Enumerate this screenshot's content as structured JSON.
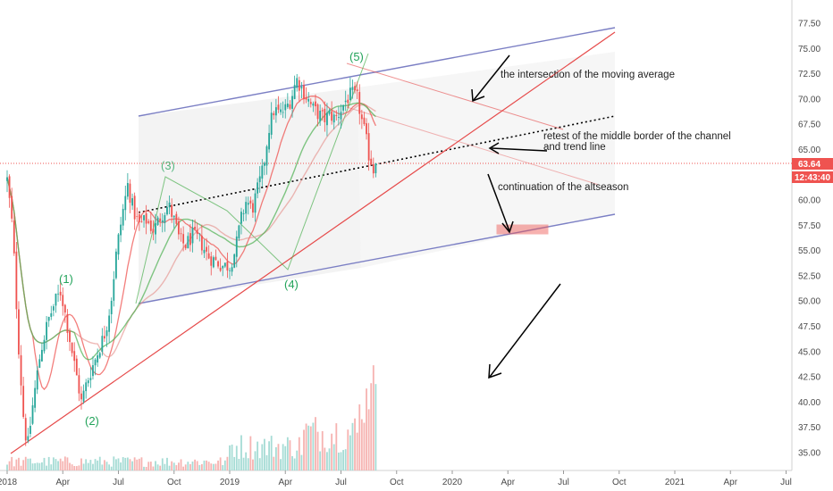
{
  "chart_data": {
    "type": "candlestick",
    "y_axis": {
      "ticks": [
        "35.00",
        "37.50",
        "40.00",
        "42.50",
        "45.00",
        "47.50",
        "50.00",
        "52.50",
        "55.00",
        "57.50",
        "60.00",
        "62.50",
        "65.00",
        "67.50",
        "70.00",
        "72.50",
        "75.00",
        "77.50"
      ],
      "ylim": [
        33.5,
        79
      ]
    },
    "x_axis": {
      "ticks": [
        "2018",
        "Apr",
        "Jul",
        "Oct",
        "2019",
        "Apr",
        "Jul",
        "Oct",
        "2020",
        "Apr",
        "Jul",
        "Oct",
        "2021",
        "Apr",
        "Jul"
      ]
    },
    "last_price": 63.64,
    "last_price_label": "63.64",
    "countdown_label": "12:43:40",
    "price_keypoints": [
      [
        0,
        62
      ],
      [
        0.3,
        57
      ],
      [
        0.6,
        46
      ],
      [
        0.9,
        38
      ],
      [
        1.1,
        35.5
      ],
      [
        1.4,
        40
      ],
      [
        1.8,
        45
      ],
      [
        2.2,
        48
      ],
      [
        2.6,
        50
      ],
      [
        2.9,
        51
      ],
      [
        3.3,
        47
      ],
      [
        3.7,
        43
      ],
      [
        4.0,
        40
      ],
      [
        4.3,
        42
      ],
      [
        4.7,
        44
      ],
      [
        5.0,
        45.5
      ],
      [
        5.3,
        47
      ],
      [
        5.6,
        50
      ],
      [
        5.9,
        55
      ],
      [
        6.2,
        58.5
      ],
      [
        6.5,
        61.5
      ],
      [
        6.8,
        59
      ],
      [
        7.1,
        57.5
      ],
      [
        7.5,
        58
      ],
      [
        7.9,
        57
      ],
      [
        8.3,
        58.5
      ],
      [
        8.7,
        59.5
      ],
      [
        9.0,
        58
      ],
      [
        9.3,
        56
      ],
      [
        9.6,
        55.5
      ],
      [
        10.0,
        56.5
      ],
      [
        10.4,
        56
      ],
      [
        10.8,
        54.5
      ],
      [
        11.2,
        54
      ],
      [
        11.6,
        53.5
      ],
      [
        12.0,
        53.5
      ],
      [
        12.3,
        55
      ],
      [
        12.6,
        58
      ],
      [
        12.9,
        60
      ],
      [
        13.2,
        59
      ],
      [
        13.5,
        61
      ],
      [
        13.8,
        63
      ],
      [
        14.1,
        67
      ],
      [
        14.4,
        69
      ],
      [
        14.7,
        68.5
      ],
      [
        15.0,
        69
      ],
      [
        15.3,
        70
      ],
      [
        15.6,
        72
      ],
      [
        15.9,
        71
      ],
      [
        16.2,
        70
      ],
      [
        16.5,
        69
      ],
      [
        16.8,
        68.5
      ],
      [
        17.1,
        68
      ],
      [
        17.4,
        68.5
      ],
      [
        17.7,
        68
      ],
      [
        18.0,
        69
      ],
      [
        18.3,
        70
      ],
      [
        18.6,
        70.5
      ],
      [
        18.9,
        70
      ],
      [
        19.1,
        68
      ],
      [
        19.3,
        66.5
      ],
      [
        19.5,
        64.5
      ],
      [
        19.7,
        63.5
      ],
      [
        19.8,
        62.5
      ],
      [
        19.9,
        63.64
      ]
    ],
    "annotations": [
      "the intersection of the moving average",
      "retest of the middle border of the channel",
      "and trend line",
      "continuation of the altseason"
    ],
    "wave_labels": [
      "(1)",
      "(2)",
      "(3)",
      "(4)",
      "(5)"
    ],
    "colors": {
      "up": "#26a69a",
      "down": "#ef5350",
      "channel": "#7b7fc4",
      "trendline": "#e64a4a",
      "ma_green": "#4caf50",
      "ma_red": "#ef5350",
      "price_line": "#ef5350"
    }
  }
}
